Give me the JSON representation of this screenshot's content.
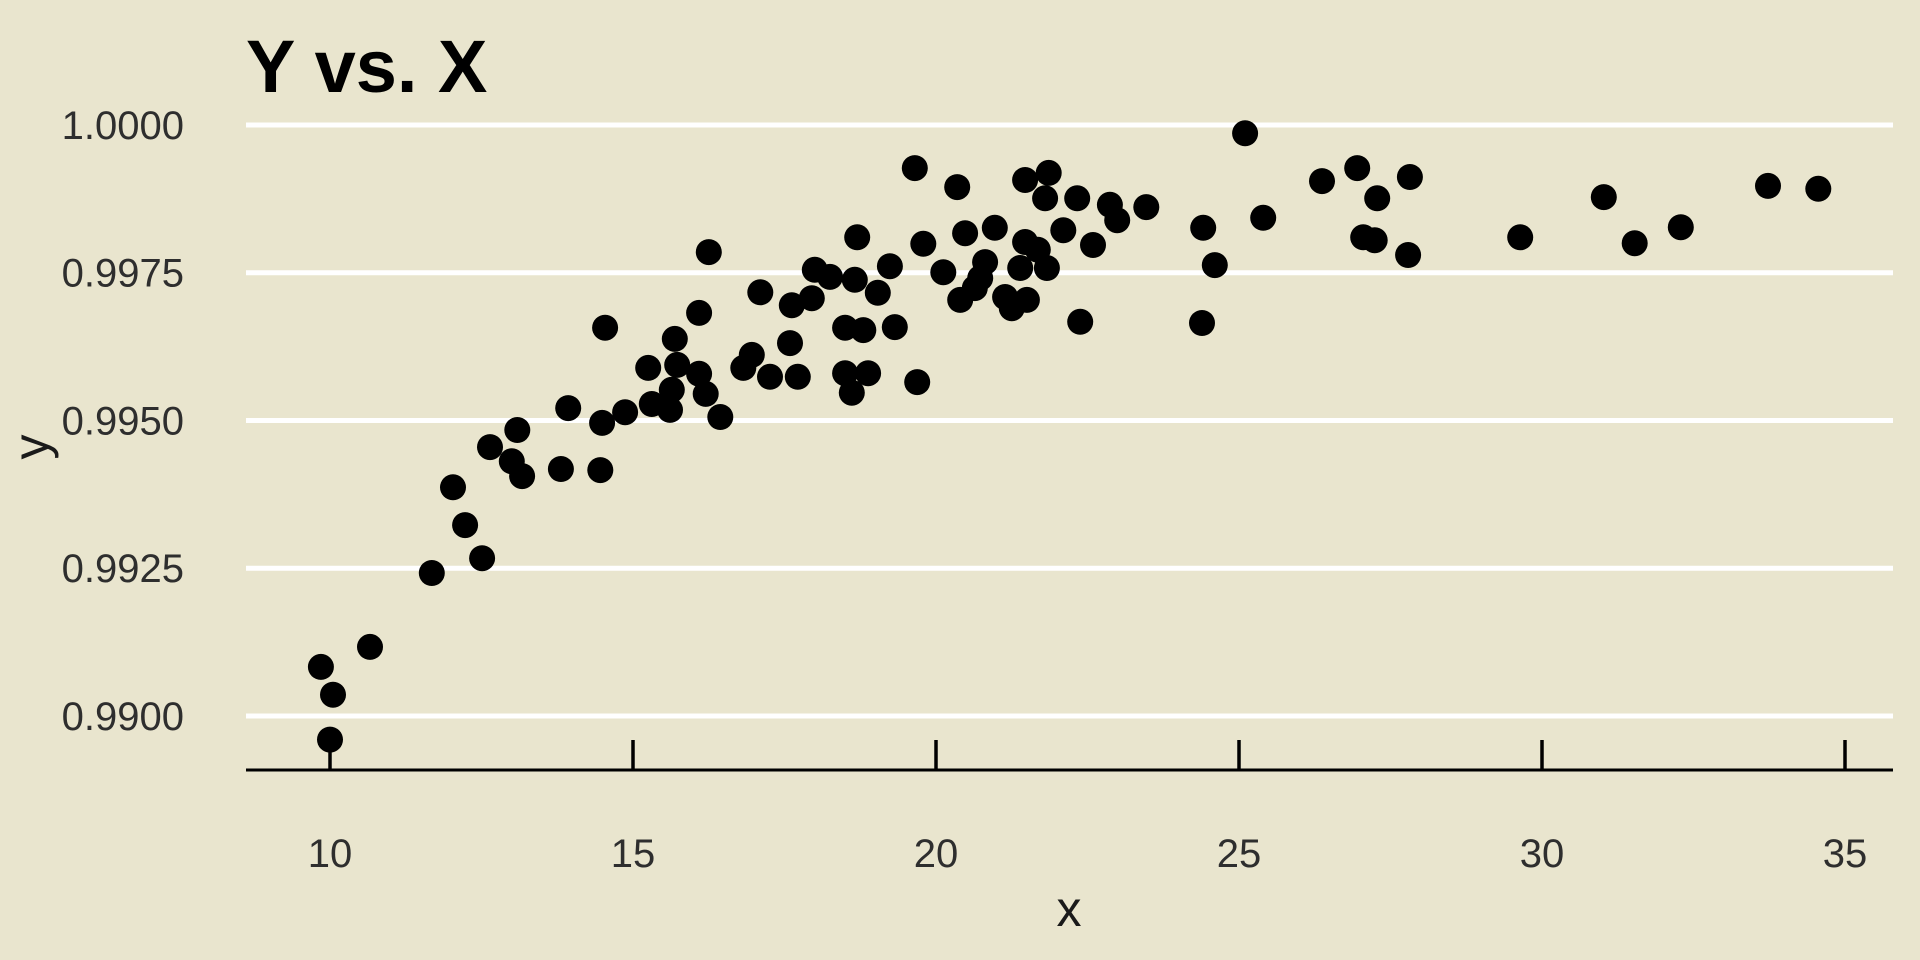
{
  "style": {
    "background_color": "#e9e5ce",
    "gridline_color": "#ffffff",
    "point_color": "#000000",
    "axis_line_color": "#000000",
    "title_color": "#000000",
    "tick_label_color": "#2e2e2e"
  },
  "chart_data": {
    "type": "scatter",
    "title": "Y vs. X",
    "xlabel": "x",
    "ylabel": "y",
    "legend": null,
    "grid": "horizontal-white-on-beige",
    "xlim": [
      8.6,
      35.8
    ],
    "ylim": [
      0.9891,
      1.0004
    ],
    "x_ticks": [
      10,
      15,
      20,
      25,
      30,
      35
    ],
    "x_tick_labels": [
      "10",
      "15",
      "20",
      "25",
      "30",
      "35"
    ],
    "y_ticks": [
      0.99,
      0.9925,
      0.995,
      0.9975,
      1.0
    ],
    "y_tick_labels": [
      "0.9900",
      "0.9925",
      "0.9950",
      "0.9975",
      "1.0000"
    ],
    "points": [
      [
        9.85,
        0.99083
      ],
      [
        10.0,
        0.9896
      ],
      [
        10.05,
        0.99036
      ],
      [
        10.66,
        0.99117
      ],
      [
        11.68,
        0.99242
      ],
      [
        12.03,
        0.99387
      ],
      [
        12.23,
        0.99323
      ],
      [
        12.51,
        0.99267
      ],
      [
        12.64,
        0.99455
      ],
      [
        13.0,
        0.99431
      ],
      [
        13.09,
        0.99484
      ],
      [
        13.17,
        0.99406
      ],
      [
        13.81,
        0.99418
      ],
      [
        13.93,
        0.99521
      ],
      [
        14.49,
        0.99496
      ],
      [
        14.46,
        0.99416
      ],
      [
        14.54,
        0.99657
      ],
      [
        14.87,
        0.99514
      ],
      [
        15.25,
        0.99589
      ],
      [
        15.69,
        0.99638
      ],
      [
        15.73,
        0.99594
      ],
      [
        15.64,
        0.99552
      ],
      [
        16.09,
        0.99579
      ],
      [
        16.2,
        0.99545
      ],
      [
        15.31,
        0.99528
      ],
      [
        15.61,
        0.99518
      ],
      [
        16.44,
        0.99506
      ],
      [
        16.09,
        0.99682
      ],
      [
        16.25,
        0.99785
      ],
      [
        16.82,
        0.99589
      ],
      [
        16.96,
        0.99611
      ],
      [
        17.26,
        0.99574
      ],
      [
        17.59,
        0.99631
      ],
      [
        17.1,
        0.99717
      ],
      [
        17.62,
        0.99695
      ],
      [
        17.72,
        0.99574
      ],
      [
        17.95,
        0.99707
      ],
      [
        18.0,
        0.99755
      ],
      [
        18.25,
        0.99743
      ],
      [
        18.5,
        0.9958
      ],
      [
        18.88,
        0.9958
      ],
      [
        18.61,
        0.99547
      ],
      [
        18.5,
        0.99657
      ],
      [
        18.8,
        0.99653
      ],
      [
        18.66,
        0.99738
      ],
      [
        18.7,
        0.9981
      ],
      [
        19.04,
        0.99716
      ],
      [
        19.24,
        0.99761
      ],
      [
        19.32,
        0.99658
      ],
      [
        19.65,
        0.99927
      ],
      [
        19.69,
        0.99565
      ],
      [
        19.79,
        0.99799
      ],
      [
        20.12,
        0.99751
      ],
      [
        20.35,
        0.99895
      ],
      [
        20.4,
        0.99704
      ],
      [
        20.48,
        0.99817
      ],
      [
        20.73,
        0.99741
      ],
      [
        20.81,
        0.99768
      ],
      [
        20.64,
        0.99724
      ],
      [
        20.97,
        0.99826
      ],
      [
        21.47,
        0.99802
      ],
      [
        21.68,
        0.99789
      ],
      [
        21.39,
        0.99758
      ],
      [
        21.83,
        0.99758
      ],
      [
        21.14,
        0.99709
      ],
      [
        21.5,
        0.99704
      ],
      [
        21.25,
        0.9969
      ],
      [
        21.47,
        0.99907
      ],
      [
        21.86,
        0.99919
      ],
      [
        21.8,
        0.99876
      ],
      [
        22.33,
        0.99876
      ],
      [
        22.1,
        0.99822
      ],
      [
        22.59,
        0.99797
      ],
      [
        22.38,
        0.99667
      ],
      [
        22.87,
        0.99865
      ],
      [
        22.99,
        0.99839
      ],
      [
        23.47,
        0.99861
      ],
      [
        24.41,
        0.99826
      ],
      [
        24.6,
        0.99763
      ],
      [
        24.39,
        0.99665
      ],
      [
        25.1,
        0.99986
      ],
      [
        25.4,
        0.99843
      ],
      [
        26.37,
        0.99905
      ],
      [
        26.95,
        0.99927
      ],
      [
        27.28,
        0.99876
      ],
      [
        27.82,
        0.99912
      ],
      [
        27.05,
        0.9981
      ],
      [
        27.24,
        0.99805
      ],
      [
        27.79,
        0.9978
      ],
      [
        29.64,
        0.9981
      ],
      [
        31.02,
        0.99878
      ],
      [
        31.53,
        0.998
      ],
      [
        32.29,
        0.99827
      ],
      [
        33.73,
        0.99897
      ],
      [
        34.56,
        0.99892
      ]
    ]
  }
}
